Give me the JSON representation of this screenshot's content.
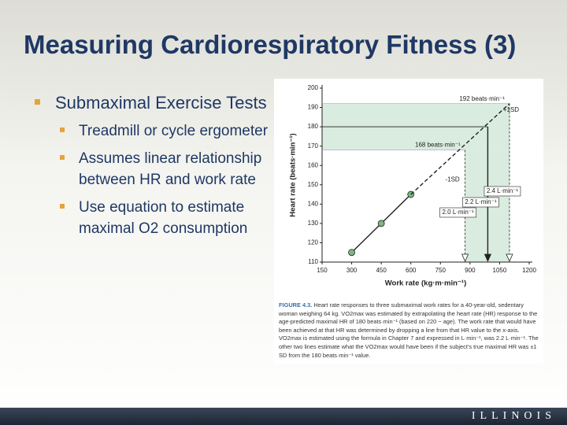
{
  "title": "Measuring Cardiorespiratory Fitness (3)",
  "bullets": [
    {
      "text": "Submaximal Exercise Tests",
      "sub": [
        "Treadmill or cycle ergometer",
        "Assumes linear relationship between HR and work rate",
        "Use equation to estimate maximal O2 consumption"
      ]
    }
  ],
  "chart_data": {
    "type": "line",
    "x_label": "Work rate (kg·m·min⁻¹)",
    "y_label": "Heart rate (beats·min⁻¹)",
    "xlim": [
      150,
      1200
    ],
    "xticks": [
      150,
      300,
      450,
      600,
      750,
      900,
      1050,
      1200
    ],
    "ylim": [
      110,
      200
    ],
    "yticks": [
      110,
      120,
      130,
      140,
      150,
      160,
      170,
      180,
      190,
      200
    ],
    "series": [
      {
        "x": [
          300,
          450,
          600
        ],
        "values": [
          115,
          130,
          145
        ],
        "color": "#222222",
        "style": "solid",
        "markers": true,
        "marker_color": "#7cb87f"
      },
      {
        "x": [
          600,
          1100
        ],
        "values": [
          145,
          192
        ],
        "color": "#222222",
        "style": "dashed",
        "markers": false
      }
    ],
    "band": {
      "y": [
        168,
        192
      ],
      "x": [
        875,
        1100
      ],
      "color": "#d9ecdf"
    },
    "reference_lines": [
      {
        "y": 192,
        "label": "192 beats·min⁻¹"
      },
      {
        "y": 180
      },
      {
        "y": 168,
        "label": "168 beats·min⁻¹"
      }
    ],
    "drops": [
      {
        "x": 875,
        "y": 168,
        "label": "2.0 L·min⁻¹",
        "style": "dashed",
        "sd_label": "-1SD"
      },
      {
        "x": 990,
        "y": 180,
        "label": "2.2 L·min⁻¹",
        "style": "solid"
      },
      {
        "x": 1100,
        "y": 192,
        "label": "2.4 L·min⁻¹",
        "style": "dashed",
        "sd_label": "+1SD"
      }
    ]
  },
  "caption": {
    "label": "FIGURE 4.3.",
    "text": "Heart rate responses to three submaximal work rates for a 40-year-old, sedentary woman weighing 64 kg. VO2max was estimated by extrapolating the heart rate (HR) response to the age-predicted maximal HR of 180 beats·min⁻¹ (based on 220 − age). The work rate that would have been achieved at that HR was determined by dropping a line from that HR value to the x-axis. VO2max is estimated using the formula in Chapter 7 and expressed in L·min⁻¹, was 2.2 L·min⁻¹. The other two lines estimate what the VO2max would have been if the subject's true maximal HR was ±1 SD from the 180 beats·min⁻¹ value."
  },
  "footer": "ILLINOIS"
}
